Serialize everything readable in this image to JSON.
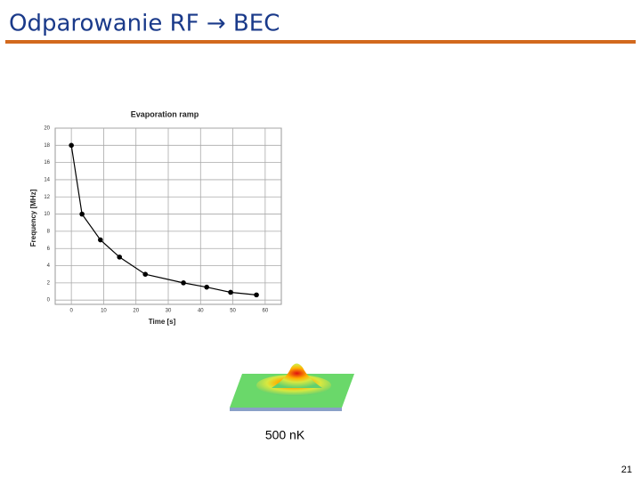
{
  "slide": {
    "title": "Odparowanie RF → BEC",
    "caption": "500 nK",
    "page_number": "21"
  },
  "chart_data": {
    "type": "line",
    "title": "Evaporation ramp",
    "x_label": "Time [s]",
    "y_label": "Frequency [MHz]",
    "x": [
      0,
      3.3,
      9,
      14.9,
      22.9,
      34.7,
      41.9,
      49.3,
      57.3
    ],
    "series": [
      {
        "name": null,
        "color": "#000000",
        "values": [
          18,
          10,
          7,
          5,
          3,
          2,
          1.5,
          0.9,
          0.6
        ]
      }
    ],
    "xlim": [
      -5,
      65
    ],
    "ylim": [
      -0.5,
      20
    ],
    "xticks": [
      0,
      10,
      20,
      30,
      40,
      50,
      60
    ],
    "yticks": [
      0,
      2,
      4,
      6,
      8,
      10,
      12,
      14,
      16,
      18,
      20
    ],
    "grid": true
  }
}
